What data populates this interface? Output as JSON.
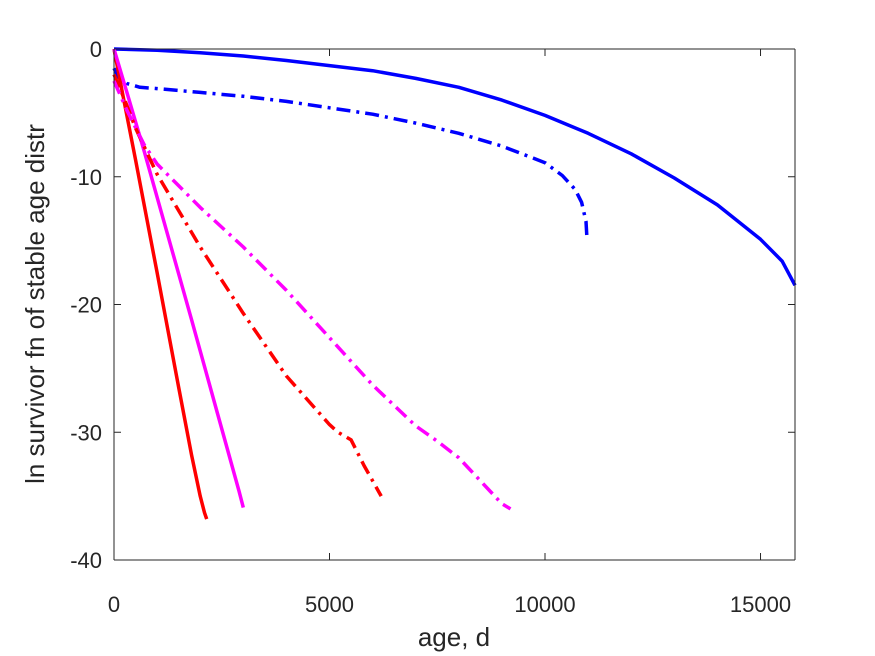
{
  "chart_data": {
    "type": "line",
    "title": "",
    "xlabel": "age, d",
    "ylabel": "ln survivor fn of stable age distr",
    "xlim": [
      0,
      15800
    ],
    "ylim": [
      -40,
      0
    ],
    "xticks": [
      0,
      5000,
      10000,
      15000
    ],
    "xtick_labels": [
      "0",
      "5000",
      "10000",
      "15000"
    ],
    "yticks": [
      0,
      -10,
      -20,
      -30,
      -40
    ],
    "ytick_labels": [
      "0",
      "-10",
      "-20",
      "-30",
      "-40"
    ],
    "grid": false,
    "legend": "none",
    "series": [
      {
        "color": "#0000ff",
        "style": "solid",
        "x": [
          0,
          1000,
          2000,
          3000,
          4000,
          5000,
          6000,
          7000,
          8000,
          9000,
          10000,
          11000,
          12000,
          13000,
          14000,
          15000,
          15500,
          15800
        ],
        "y": [
          0,
          -0.1,
          -0.3,
          -0.55,
          -0.9,
          -1.3,
          -1.7,
          -2.3,
          -3.0,
          -4.0,
          -5.2,
          -6.6,
          -8.2,
          -10.1,
          -12.2,
          -14.9,
          -16.6,
          -18.5
        ]
      },
      {
        "color": "#0000ff",
        "style": "dashdot",
        "x": [
          0,
          100,
          300,
          600,
          1000,
          2000,
          3000,
          4000,
          5000,
          6000,
          7000,
          8000,
          9000,
          10000,
          10400,
          10700,
          10850,
          10950,
          10970
        ],
        "y": [
          -1.5,
          -2.2,
          -2.7,
          -3.0,
          -3.1,
          -3.4,
          -3.7,
          -4.1,
          -4.6,
          -5.1,
          -5.8,
          -6.6,
          -7.6,
          -8.9,
          -9.9,
          -11.0,
          -12.0,
          -13.5,
          -14.6
        ]
      },
      {
        "color": "#ff0000",
        "style": "solid",
        "x": [
          0,
          200,
          500,
          1000,
          1500,
          1800,
          2000,
          2100,
          2150
        ],
        "y": [
          0,
          -3.5,
          -8.7,
          -17.5,
          -26.5,
          -31.8,
          -35.0,
          -36.3,
          -36.8
        ]
      },
      {
        "color": "#ff00ff",
        "style": "solid",
        "x": [
          0,
          300,
          700,
          1200,
          1800,
          2400,
          2900,
          3000
        ],
        "y": [
          0,
          -3.4,
          -8.0,
          -14.0,
          -21.2,
          -28.5,
          -34.6,
          -35.9
        ]
      },
      {
        "color": "#ff0000",
        "style": "dashdot",
        "x": [
          0,
          250,
          500,
          1000,
          2000,
          3000,
          4000,
          5000,
          5200,
          5500,
          5800,
          6000,
          6200
        ],
        "y": [
          -2.0,
          -4.0,
          -6.2,
          -9.8,
          -15.5,
          -20.7,
          -25.6,
          -29.4,
          -30.0,
          -30.6,
          -32.6,
          -33.8,
          -35.0
        ]
      },
      {
        "color": "#ff00ff",
        "style": "dashdot",
        "x": [
          0,
          300,
          700,
          1000,
          2000,
          3000,
          4000,
          5000,
          6000,
          7000,
          7500,
          8000,
          8500,
          9000,
          9200
        ],
        "y": [
          -2.5,
          -4.8,
          -7.5,
          -9.0,
          -12.4,
          -15.5,
          -18.9,
          -22.6,
          -26.3,
          -29.5,
          -30.7,
          -32.0,
          -33.8,
          -35.6,
          -36.0
        ]
      }
    ]
  }
}
